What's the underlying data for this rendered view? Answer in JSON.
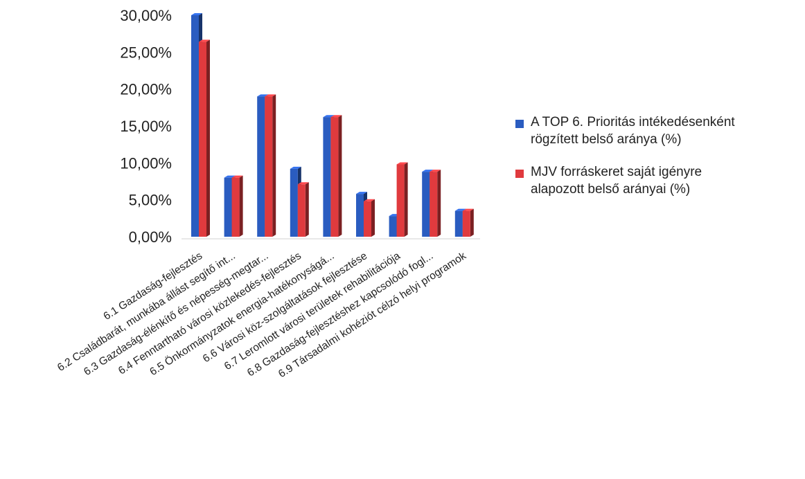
{
  "chart_data": {
    "type": "bar",
    "categories": [
      "6.1 Gazdaság-fejlesztés",
      "6.2 Családbarát, munkába állást segítő int...",
      "6.3 Gazdaság-élénkítő és népesség-megtar...",
      "6.4 Fenntartható városi közlekedés-fejlesztés",
      "6.5 Önkormányzatok energia-hatékonyságá...",
      "6.6 Városi köz-szolgáltatások fejlesztése",
      "6.7 Leromlott városi területek rehabilitációja",
      "6.8 Gazdaság-fejlesztéshez kapcsolódó fogl...",
      "6.9 Társadalmi kohéziót célzó helyi programok"
    ],
    "series": [
      {
        "name": "A TOP 6. Prioritás intékedésenként rögzített belső aránya (%)",
        "color": "#2a5cc0",
        "values": [
          30.0,
          8.0,
          19.0,
          9.2,
          16.2,
          5.8,
          2.8,
          8.8,
          3.5
        ]
      },
      {
        "name": "MJV forráskeret  saját igényre alapozott belső arányai (%)",
        "color": "#e03a3e",
        "values": [
          26.4,
          8.0,
          19.0,
          7.1,
          16.2,
          4.8,
          9.8,
          8.8,
          3.5
        ]
      }
    ],
    "ylim": [
      0,
      30
    ],
    "yticks": [
      "0,00%",
      "5,00%",
      "10,00%",
      "15,00%",
      "20,00%",
      "25,00%",
      "30,00%"
    ],
    "legend_position": "right",
    "grid": false,
    "style": "3d-bars"
  },
  "legend": {
    "line1_a": "A TOP 6. Prioritás intékedésenként",
    "line1_b": "rögzített belső aránya (%)",
    "line2_a": "MJV forráskeret  saját igényre",
    "line2_b": "alapozott belső arányai (%)"
  }
}
